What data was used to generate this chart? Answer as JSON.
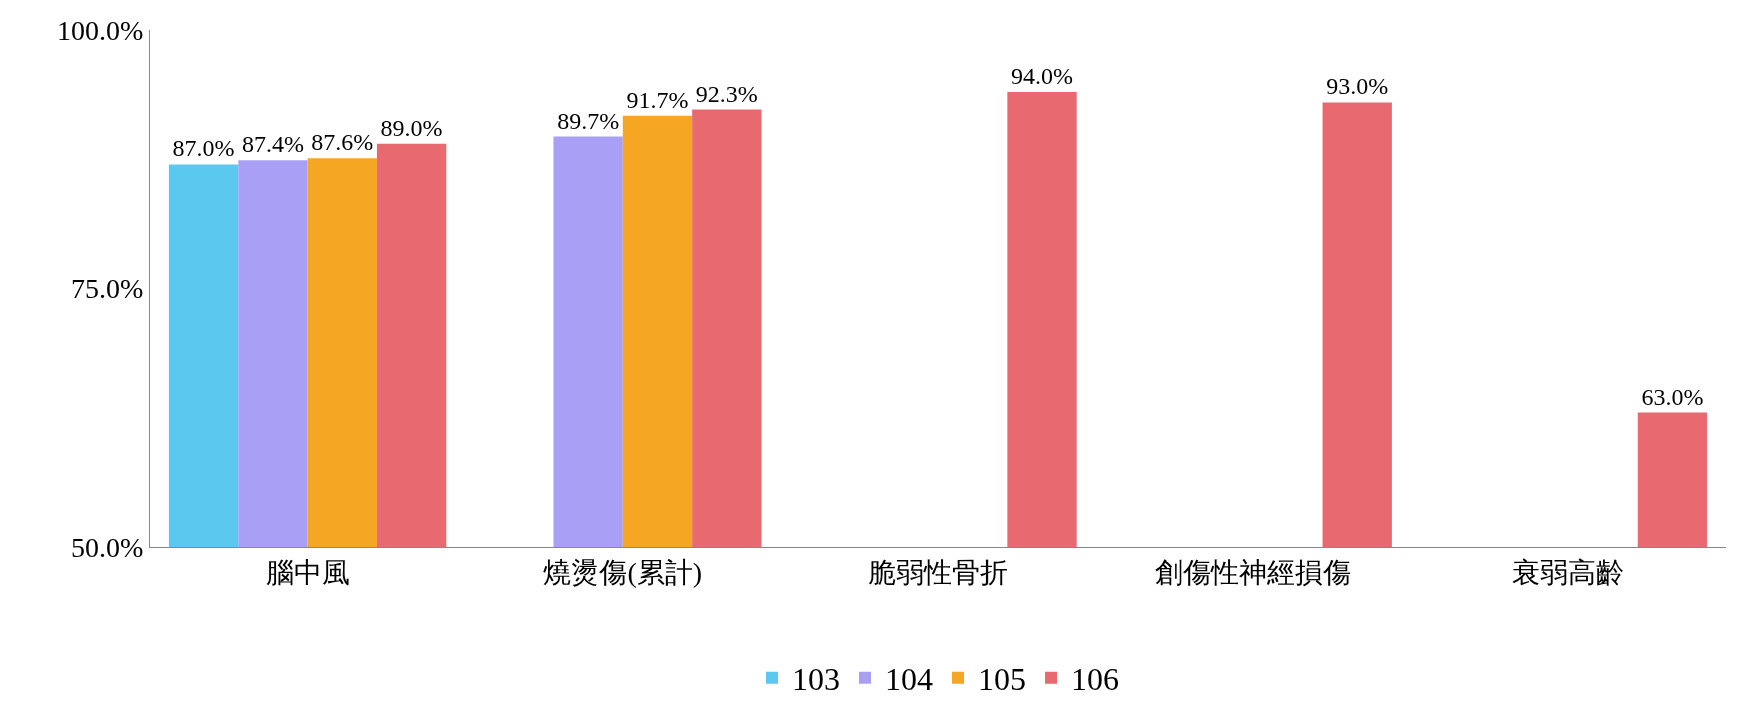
{
  "chart_data": {
    "type": "bar",
    "categories": [
      "腦中風",
      "燒燙傷(累計)",
      "脆弱性骨折",
      "創傷性神經損傷",
      "衰弱高齡"
    ],
    "series": [
      {
        "name": "103",
        "color": "#5bc8f0",
        "values": [
          87.0,
          null,
          null,
          null,
          null
        ],
        "value_labels": [
          "87.0%",
          null,
          null,
          null,
          null
        ]
      },
      {
        "name": "104",
        "color": "#a9a0f5",
        "values": [
          87.4,
          89.7,
          null,
          null,
          null
        ],
        "value_labels": [
          "87.4%",
          "89.7%",
          null,
          null,
          null
        ]
      },
      {
        "name": "105",
        "color": "#f5a623",
        "values": [
          87.6,
          91.7,
          null,
          null,
          null
        ],
        "value_labels": [
          "87.6%",
          "91.7%",
          null,
          null,
          null
        ]
      },
      {
        "name": "106",
        "color": "#e86a70",
        "values": [
          89.0,
          92.3,
          94.0,
          93.0,
          63.0
        ],
        "value_labels": [
          "89.0%",
          "92.3%",
          "94.0%",
          "93.0%",
          "63.0%"
        ]
      }
    ],
    "ylim": [
      50,
      100
    ],
    "yticks": [
      {
        "value": 50,
        "label": "50.0%"
      },
      {
        "value": 75,
        "label": "75.0%"
      },
      {
        "value": 100,
        "label": "100.0%"
      }
    ],
    "grid": false,
    "legend": "bottom"
  }
}
